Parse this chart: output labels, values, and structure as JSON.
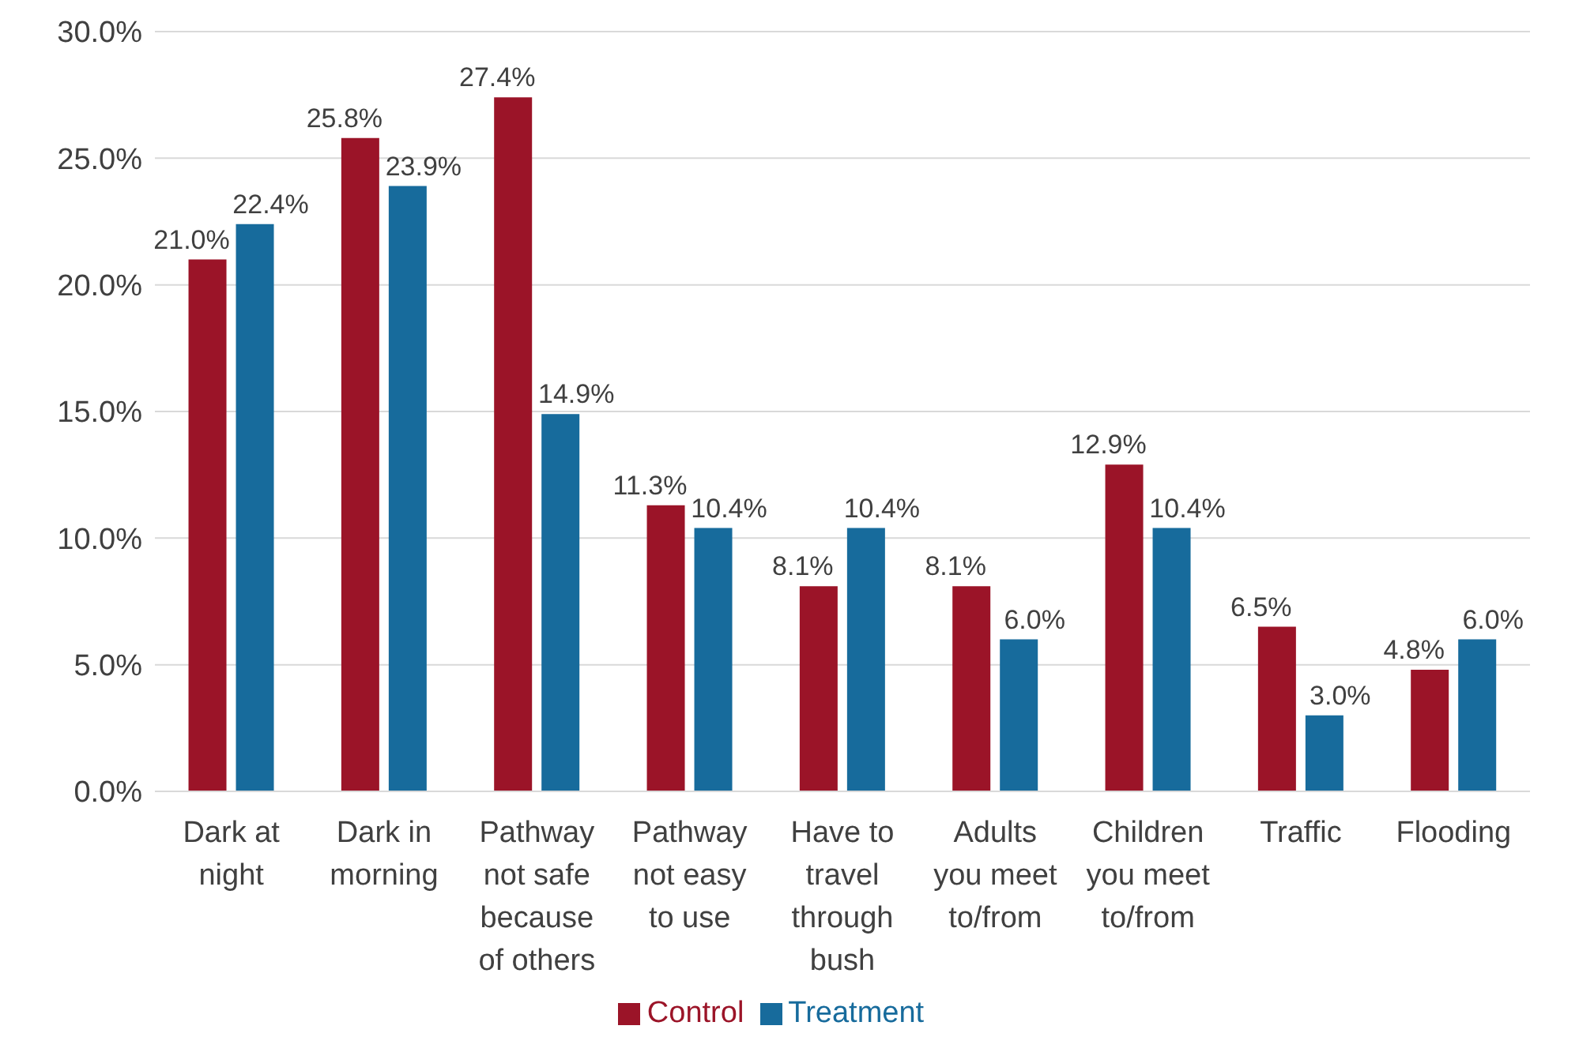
{
  "chart_data": {
    "type": "bar",
    "categories": [
      "Dark at night",
      "Dark in morning",
      "Pathway not safe because of others",
      "Pathway not easy to use",
      "Have to travel through bush",
      "Adults you meet to/from",
      "Children you meet to/from",
      "Traffic",
      "Flooding"
    ],
    "series": [
      {
        "name": "Control",
        "color": "#9b1428",
        "values": [
          21.0,
          25.8,
          27.4,
          11.3,
          8.1,
          8.1,
          12.9,
          6.5,
          4.8
        ],
        "value_labels": [
          "21.0%",
          "25.8%",
          "27.4%",
          "11.3%",
          "8.1%",
          "8.1%",
          "12.9%",
          "6.5%",
          "4.8%"
        ]
      },
      {
        "name": "Treatment",
        "color": "#176b9c",
        "values": [
          22.4,
          23.9,
          14.9,
          10.4,
          10.4,
          6.0,
          10.4,
          3.0,
          6.0
        ],
        "value_labels": [
          "22.4%",
          "23.9%",
          "14.9%",
          "10.4%",
          "10.4%",
          "6.0%",
          "10.4%",
          "3.0%",
          "6.0%"
        ]
      }
    ],
    "ylim": [
      0,
      30
    ],
    "yticks": [
      {
        "value": 0,
        "label": "0.0%"
      },
      {
        "value": 5,
        "label": "5.0%"
      },
      {
        "value": 10,
        "label": "10.0%"
      },
      {
        "value": 15,
        "label": "15.0%"
      },
      {
        "value": 20,
        "label": "20.0%"
      },
      {
        "value": 25,
        "label": "25.0%"
      },
      {
        "value": 30,
        "label": "30.0%"
      }
    ],
    "grid": "y",
    "legend": "bottom"
  }
}
